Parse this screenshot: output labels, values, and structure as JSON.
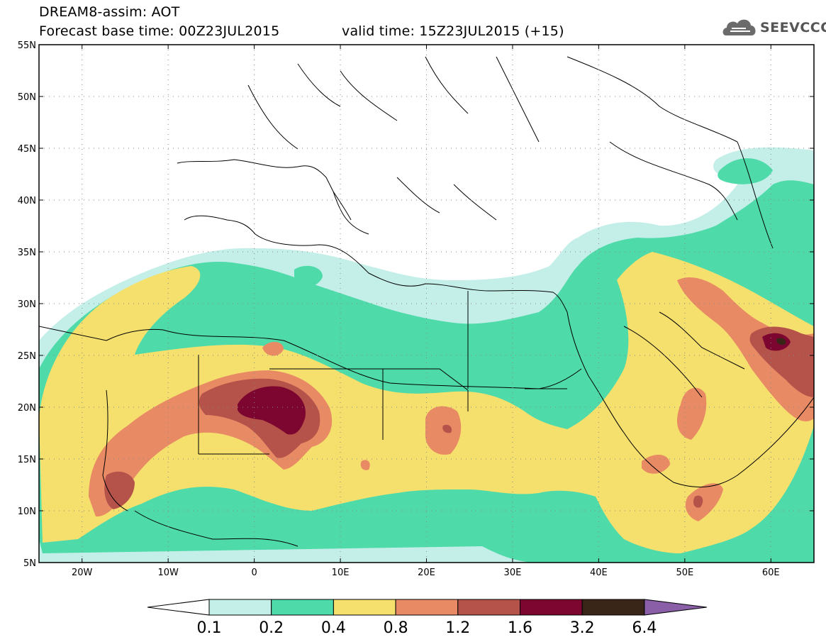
{
  "header": {
    "title": "DREAM8-assim: AOT",
    "base_time": "Forecast base time: 00Z23JUL2015",
    "valid_time": "valid time: 15Z23JUL2015 (+15)",
    "logo_text": "SEEVCCC"
  },
  "map": {
    "lon_range": [
      -25,
      65
    ],
    "lat_range": [
      5,
      55
    ],
    "lon_ticks": [
      {
        "value": -20,
        "label": "20W"
      },
      {
        "value": -10,
        "label": "10W"
      },
      {
        "value": 0,
        "label": "0"
      },
      {
        "value": 10,
        "label": "10E"
      },
      {
        "value": 20,
        "label": "20E"
      },
      {
        "value": 30,
        "label": "30E"
      },
      {
        "value": 40,
        "label": "40E"
      },
      {
        "value": 50,
        "label": "50E"
      },
      {
        "value": 60,
        "label": "60E"
      }
    ],
    "lat_ticks": [
      {
        "value": 5,
        "label": "5N"
      },
      {
        "value": 10,
        "label": "10N"
      },
      {
        "value": 15,
        "label": "15N"
      },
      {
        "value": 20,
        "label": "20N"
      },
      {
        "value": 25,
        "label": "25N"
      },
      {
        "value": 30,
        "label": "30N"
      },
      {
        "value": 35,
        "label": "35N"
      },
      {
        "value": 40,
        "label": "40N"
      },
      {
        "value": 45,
        "label": "45N"
      },
      {
        "value": 50,
        "label": "50N"
      },
      {
        "value": 55,
        "label": "55N"
      }
    ],
    "grid": true
  },
  "colorbar": {
    "under_color": "#ffffff",
    "over_color": "#8b5fa8",
    "bins": [
      {
        "color": "#c3efe8"
      },
      {
        "color": "#4fdaaa"
      },
      {
        "color": "#f5e06e"
      },
      {
        "color": "#e88a64"
      },
      {
        "color": "#b5524a"
      },
      {
        "color": "#7d0630"
      },
      {
        "color": "#3a2618"
      }
    ],
    "labels": [
      "0.1",
      "0.2",
      "0.4",
      "0.8",
      "1.2",
      "1.6",
      "3.2",
      "6.4"
    ]
  },
  "colors": {
    "c1": "#c3efe8",
    "c2": "#4fdaaa",
    "c3": "#f5e06e",
    "c4": "#e88a64",
    "c5": "#b5524a",
    "c6": "#7d0630",
    "c7": "#3a2618"
  }
}
